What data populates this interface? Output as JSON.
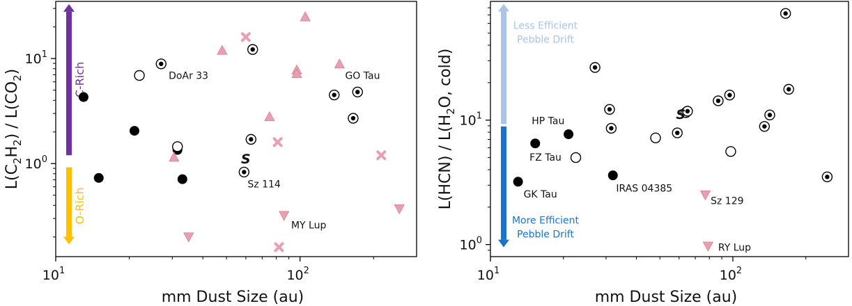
{
  "chart_data": [
    {
      "type": "scatter",
      "xlabel": "mm Dust Size (au)",
      "ylabel_parts": [
        "L(C",
        "2",
        "H",
        "2",
        ") / L(CO",
        "2",
        ")"
      ],
      "xscale": "log",
      "yscale": "log",
      "xlim": [
        10,
        300
      ],
      "ylim": [
        0.13,
        35
      ],
      "xticks": [
        {
          "value": 10,
          "base": "10",
          "exp": "1"
        },
        {
          "value": 100,
          "base": "10",
          "exp": "2"
        }
      ],
      "yticks": [
        {
          "value": 1,
          "base": "10",
          "exp": "0"
        },
        {
          "value": 10,
          "base": "10",
          "exp": "1"
        }
      ],
      "arrows": [
        {
          "label": "C-Rich",
          "color": "#7030a0",
          "direction": "up",
          "from": 1.2,
          "to": 33
        },
        {
          "label": "O-Rich",
          "color": "#ffc000",
          "direction": "down",
          "from": 0.92,
          "to": 0.17
        }
      ],
      "series": [
        {
          "marker": "filled-circle",
          "color": "#000000",
          "points": [
            [
              13,
              4.3
            ],
            [
              15,
              0.73
            ],
            [
              21,
              2.05
            ],
            [
              31.5,
              1.35
            ],
            [
              33,
              0.71
            ]
          ]
        },
        {
          "marker": "open-circle",
          "color": "#000000",
          "points": [
            [
              22,
              6.9
            ],
            [
              31.5,
              1.45
            ]
          ]
        },
        {
          "marker": "dot-circle",
          "color": "#000000",
          "points": [
            [
              27,
              8.9
            ],
            [
              64,
              12.2
            ],
            [
              63,
              1.7
            ],
            [
              59,
              0.83
            ],
            [
              138,
              4.5
            ],
            [
              172,
              4.8
            ],
            [
              165,
              2.7
            ]
          ]
        },
        {
          "marker": "triangle-up",
          "color": "#e8a0b0",
          "points": [
            [
              48,
              12
            ],
            [
              75,
              2.8
            ],
            [
              30.5,
              1.15
            ],
            [
              97,
              7.8
            ],
            [
              97,
              7.2
            ],
            [
              105,
              25
            ],
            [
              145,
              8.9
            ]
          ]
        },
        {
          "marker": "x",
          "color": "#e8a0b0",
          "points": [
            [
              60,
              16
            ],
            [
              81,
              1.6
            ],
            [
              215,
              1.2
            ],
            [
              82,
              0.16
            ]
          ]
        },
        {
          "marker": "triangle-down",
          "color": "#e8a0b0",
          "points": [
            [
              35,
              0.2
            ],
            [
              86,
              0.32
            ],
            [
              255,
              0.37
            ]
          ]
        }
      ],
      "sun_markers": [
        {
          "x": 60,
          "y": 1.12
        }
      ],
      "annotations": [
        {
          "text": "DoAr 33",
          "x": 29,
          "y": 6.9
        },
        {
          "text": "Sz 114",
          "x": 61,
          "y": 0.64
        },
        {
          "text": "GO Tau",
          "x": 153,
          "y": 6.9
        },
        {
          "text": "MY Lup",
          "x": 92,
          "y": 0.26
        }
      ]
    },
    {
      "type": "scatter",
      "xlabel": "mm Dust Size (au)",
      "ylabel_parts": [
        "L(HCN) / L(H",
        "2",
        "O, cold)"
      ],
      "xscale": "log",
      "yscale": "log",
      "xlim": [
        10,
        300
      ],
      "ylim": [
        0.8,
        90
      ],
      "xticks": [
        {
          "value": 10,
          "base": "10",
          "exp": "1"
        },
        {
          "value": 100,
          "base": "10",
          "exp": "2"
        }
      ],
      "yticks": [
        {
          "value": 1,
          "base": "10",
          "exp": "0"
        },
        {
          "value": 10,
          "base": "10",
          "exp": "1"
        }
      ],
      "arrows": [
        {
          "label_lines": [
            "Less Efficient",
            "Pebble Drift"
          ],
          "color": "#a9c4e6",
          "direction": "up",
          "from": 9.3,
          "to": 86
        },
        {
          "label_lines": [
            "More Efficient",
            "Pebble Drift"
          ],
          "color": "#1874c8",
          "direction": "down",
          "from": 8.9,
          "to": 0.95
        }
      ],
      "series": [
        {
          "marker": "filled-circle",
          "color": "#000000",
          "points": [
            [
              21,
              7.7
            ],
            [
              15.3,
              6.5
            ],
            [
              32,
              3.6
            ],
            [
              13,
              3.2
            ],
            [
              246,
              3.5
            ]
          ]
        },
        {
          "marker": "open-circle",
          "color": "#000000",
          "points": [
            [
              22.5,
              5.0
            ],
            [
              48,
              7.2
            ],
            [
              98,
              5.6
            ],
            [
              64,
              11.5
            ]
          ]
        },
        {
          "marker": "dot-circle",
          "color": "#000000",
          "points": [
            [
              27,
              26.5
            ],
            [
              31,
              12.2
            ],
            [
              31.5,
              8.6
            ],
            [
              59,
              7.9
            ],
            [
              65,
              11.8
            ],
            [
              87,
              14.3
            ],
            [
              97,
              15.9
            ],
            [
              135,
              8.9
            ],
            [
              142,
              11
            ],
            [
              170,
              17.7
            ],
            [
              165,
              72
            ],
            [
              245,
              3.5
            ]
          ]
        },
        {
          "marker": "triangle-down",
          "color": "#e8a0b0",
          "points": [
            [
              77,
              2.5
            ],
            [
              79,
              0.97
            ]
          ]
        }
      ],
      "sun_markers": [
        {
          "x": 61,
          "y": 11.2
        }
      ],
      "annotations": [
        {
          "text": "HP Tau",
          "x": 14.8,
          "y": 9.9
        },
        {
          "text": "FZ Tau",
          "x": 14.5,
          "y": 5.05
        },
        {
          "text": "GK Tau",
          "x": 13.7,
          "y": 2.55
        },
        {
          "text": "IRAS 04385",
          "x": 33,
          "y": 2.85
        },
        {
          "text": "Sz 129",
          "x": 81,
          "y": 2.25
        },
        {
          "text": "RY Lup",
          "x": 87,
          "y": 0.95
        }
      ]
    }
  ]
}
